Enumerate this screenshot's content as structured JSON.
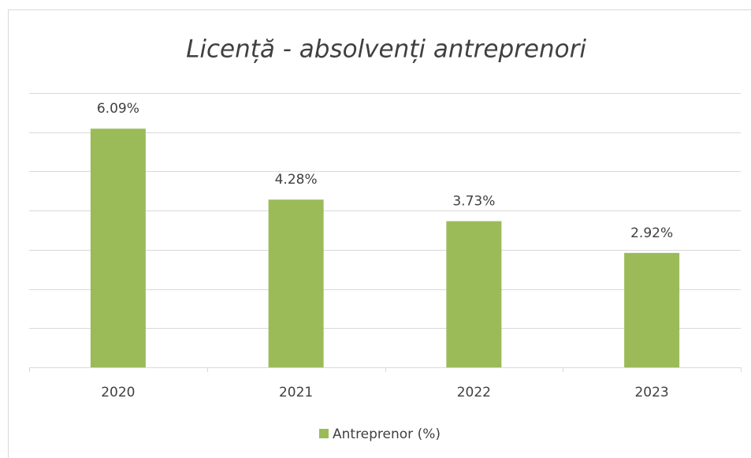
{
  "chart_data": {
    "type": "bar",
    "title": "Licență - absolvenți antreprenori",
    "categories": [
      "2020",
      "2021",
      "2022",
      "2023"
    ],
    "series": [
      {
        "name": "Antreprenor (%)",
        "color": "#9bbb59",
        "values": [
          6.09,
          4.28,
          3.73,
          2.92
        ],
        "value_labels": [
          "6.09%",
          "4.28%",
          "3.73%",
          "2.92%"
        ]
      }
    ],
    "ylim": [
      0,
      7
    ],
    "yticks": [
      0,
      1,
      2,
      3,
      4,
      5,
      6,
      7
    ],
    "grid": true,
    "legend": "bottom"
  }
}
